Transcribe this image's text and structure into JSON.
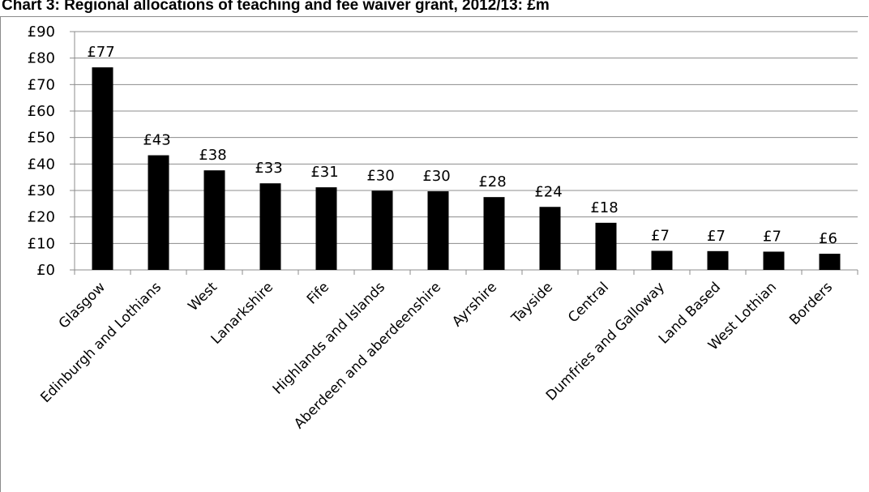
{
  "chart_data": {
    "type": "bar",
    "title": "Chart 3: Regional allocations of teaching and fee waiver grant, 2012/13: £m",
    "categories": [
      "Glasgow",
      "Edinburgh and Lothians",
      "West",
      "Lanarkshire",
      "Fife",
      "Highlands and Islands",
      "Aberdeen and aberdeenshire",
      "Ayrshire",
      "Tayside",
      "Central",
      "Dumfries and Galloway",
      "Land Based",
      "West Lothian",
      "Borders"
    ],
    "values": [
      76.5,
      43.3,
      37.6,
      32.7,
      31.2,
      29.9,
      29.7,
      27.5,
      23.8,
      17.8,
      7.2,
      7.1,
      6.9,
      6.1
    ],
    "data_labels": [
      "£77",
      "£43",
      "£38",
      "£33",
      "£31",
      "£30",
      "£30",
      "£28",
      "£24",
      "£18",
      "£7",
      "£7",
      "£7",
      "£6"
    ],
    "y_ticks": [
      "£0",
      "£10",
      "£20",
      "£30",
      "£40",
      "£50",
      "£60",
      "£70",
      "£80",
      "£90"
    ],
    "ylim": [
      0,
      90
    ],
    "xlabel": "",
    "ylabel": "",
    "grid": true,
    "bar_color": "#000000",
    "grid_color": "#8c8c8c"
  }
}
